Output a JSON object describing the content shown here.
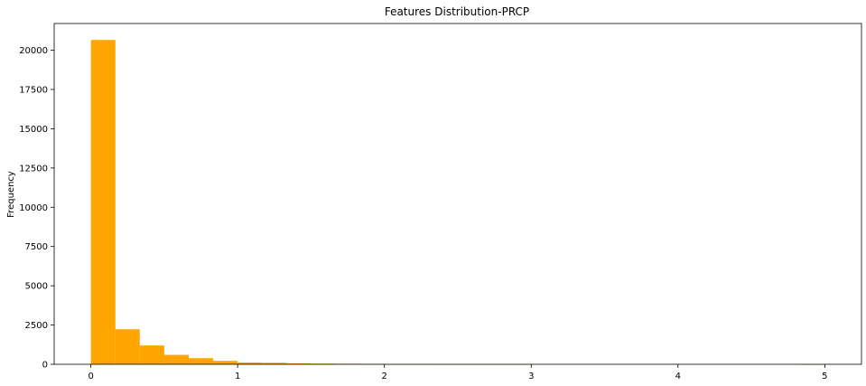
{
  "chart_data": {
    "type": "bar",
    "title": "Features Distribution-PRCP",
    "xlabel": "",
    "ylabel": "Frequency",
    "bar_color": "#ffa500",
    "xlim": [
      -0.25,
      5.25
    ],
    "ylim": [
      0,
      21700
    ],
    "x_ticks": [
      0,
      1,
      2,
      3,
      4,
      5
    ],
    "y_ticks": [
      0,
      2500,
      5000,
      7500,
      10000,
      12500,
      15000,
      17500,
      20000
    ],
    "bins": [
      {
        "x0": 0.0,
        "x1": 0.167,
        "count": 20650
      },
      {
        "x0": 0.167,
        "x1": 0.333,
        "count": 2230
      },
      {
        "x0": 0.333,
        "x1": 0.5,
        "count": 1200
      },
      {
        "x0": 0.5,
        "x1": 0.667,
        "count": 600
      },
      {
        "x0": 0.667,
        "x1": 0.833,
        "count": 390
      },
      {
        "x0": 0.833,
        "x1": 1.0,
        "count": 220
      },
      {
        "x0": 1.0,
        "x1": 1.167,
        "count": 120
      },
      {
        "x0": 1.167,
        "x1": 1.333,
        "count": 100
      },
      {
        "x0": 1.333,
        "x1": 1.5,
        "count": 60
      },
      {
        "x0": 1.5,
        "x1": 1.667,
        "count": 45
      },
      {
        "x0": 1.667,
        "x1": 1.833,
        "count": 35
      },
      {
        "x0": 1.833,
        "x1": 2.0,
        "count": 8
      },
      {
        "x0": 2.0,
        "x1": 2.167,
        "count": 5
      },
      {
        "x0": 2.167,
        "x1": 2.333,
        "count": 3
      },
      {
        "x0": 2.333,
        "x1": 2.5,
        "count": 2
      },
      {
        "x0": 2.5,
        "x1": 2.667,
        "count": 1
      },
      {
        "x0": 2.667,
        "x1": 2.833,
        "count": 1
      },
      {
        "x0": 2.833,
        "x1": 3.0,
        "count": 1
      },
      {
        "x0": 3.0,
        "x1": 3.167,
        "count": 0
      },
      {
        "x0": 3.167,
        "x1": 3.333,
        "count": 0
      },
      {
        "x0": 3.333,
        "x1": 3.5,
        "count": 0
      },
      {
        "x0": 3.5,
        "x1": 3.667,
        "count": 0
      },
      {
        "x0": 3.667,
        "x1": 3.833,
        "count": 0
      },
      {
        "x0": 3.833,
        "x1": 4.0,
        "count": 0
      },
      {
        "x0": 4.0,
        "x1": 4.167,
        "count": 0
      },
      {
        "x0": 4.167,
        "x1": 4.333,
        "count": 0
      },
      {
        "x0": 4.333,
        "x1": 4.5,
        "count": 0
      },
      {
        "x0": 4.5,
        "x1": 4.667,
        "count": 0
      },
      {
        "x0": 4.667,
        "x1": 4.833,
        "count": 0
      },
      {
        "x0": 4.833,
        "x1": 5.0,
        "count": 1
      }
    ]
  }
}
